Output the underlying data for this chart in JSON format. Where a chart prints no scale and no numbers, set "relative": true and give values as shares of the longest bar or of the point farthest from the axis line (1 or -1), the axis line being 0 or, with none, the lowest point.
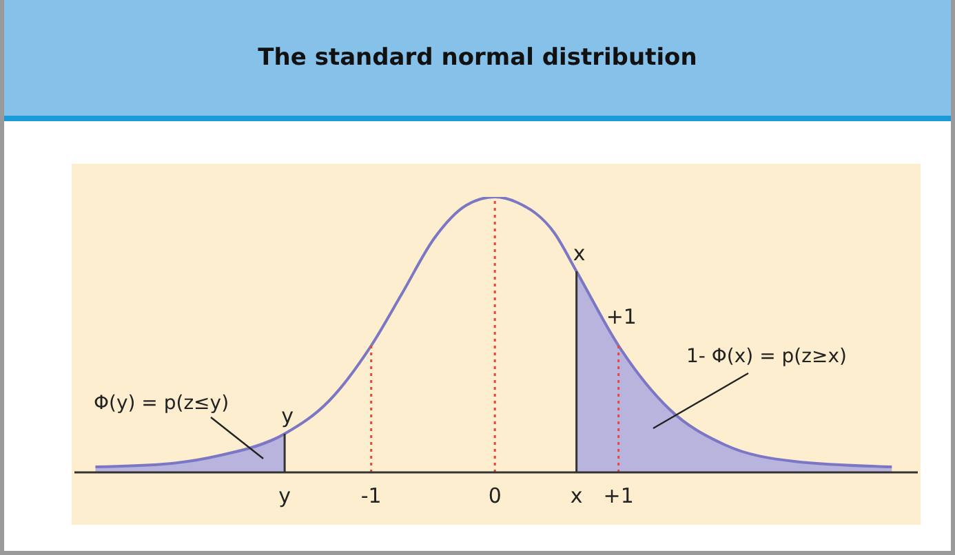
{
  "chart_data": {
    "type": "line",
    "title": "The standard normal distribution",
    "relative": true,
    "xlim": [
      -3.4,
      3.42
    ],
    "xticks": [
      {
        "value": -1.7,
        "label": "y"
      },
      {
        "value": -1,
        "label": "-1"
      },
      0,
      {
        "value": 0.66,
        "label": "x"
      },
      {
        "value": 1,
        "label": "+1"
      }
    ],
    "series": [
      {
        "color": "#7b77c4",
        "x": [
          -3.23,
          -2.68,
          -2.24,
          -1.7,
          -1.34,
          -1,
          -0.75,
          -0.49,
          -0.23,
          0,
          0.18,
          0.48,
          0.66,
          1,
          1.41,
          1.86,
          2.42,
          3.21
        ],
        "values": [
          0.02,
          0.03,
          0.06,
          0.14,
          0.26,
          0.46,
          0.65,
          0.85,
          0.97,
          1,
          0.98,
          0.87,
          0.73,
          0.46,
          0.23,
          0.1,
          0.04,
          0.02
        ]
      },
      {
        "type": "area",
        "color": "#b8b4dd",
        "x": [
          -3.23,
          -2.68,
          -2.24,
          -1.7
        ],
        "values": [
          0.02,
          0.03,
          0.06,
          0.14
        ]
      },
      {
        "type": "area",
        "color": "#b8b4dd",
        "x": [
          0.66,
          1,
          1.41,
          1.86,
          2.42,
          3.21
        ],
        "values": [
          0.73,
          0.46,
          0.23,
          0.1,
          0.04,
          0.02
        ]
      }
    ],
    "ref_lines": [
      {
        "axis": "x",
        "value": -1.7,
        "label": "y",
        "color": "#333333",
        "line_style": "solid"
      },
      {
        "axis": "x",
        "value": -1,
        "color": "#e8463a",
        "line_style": "dotted"
      },
      {
        "axis": "x",
        "value": 0,
        "color": "#e8463a",
        "line_style": "dotted"
      },
      {
        "axis": "x",
        "value": 0.66,
        "label": "x",
        "color": "#333333",
        "line_style": "solid"
      },
      {
        "axis": "x",
        "value": 1,
        "label": "+1",
        "color": "#e8463a",
        "line_style": "dotted"
      }
    ],
    "annotations": [
      "Φ(y) = p(z≤y)",
      "1- Φ(x) = p(z≥x)"
    ],
    "grid": false
  }
}
